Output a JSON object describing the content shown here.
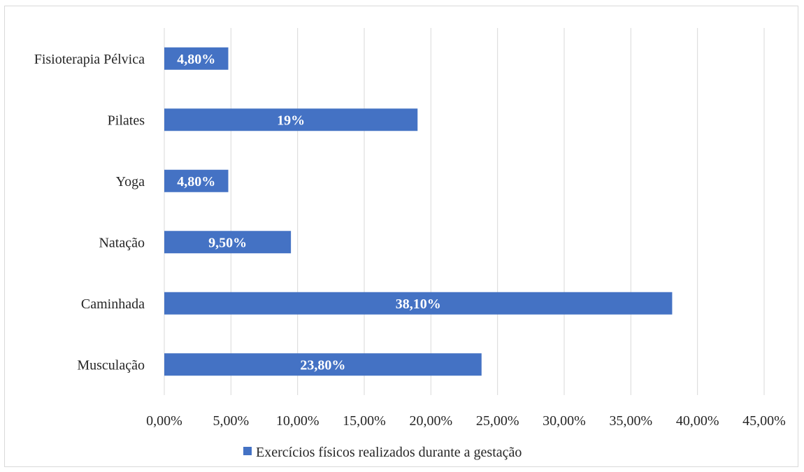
{
  "chart_data": {
    "type": "bar",
    "orientation": "horizontal",
    "categories": [
      "Fisioterapia Pélvica",
      "Pilates",
      "Yoga",
      "Natação",
      "Caminhada",
      "Musculação"
    ],
    "series": [
      {
        "name": "Exercícios físicos realizados durante a gestação",
        "values": [
          4.8,
          19.0,
          4.8,
          9.5,
          38.1,
          23.8
        ],
        "data_labels": [
          "4,80%",
          "19%",
          "4,80%",
          "9,50%",
          "38,10%",
          "23,80%"
        ],
        "color": "#4472c4"
      }
    ],
    "xlim": [
      0,
      45
    ],
    "x_ticks": [
      0,
      5,
      10,
      15,
      20,
      25,
      30,
      35,
      40,
      45
    ],
    "x_tick_labels": [
      "0,00%",
      "5,00%",
      "10,00%",
      "15,00%",
      "20,00%",
      "25,00%",
      "30,00%",
      "35,00%",
      "40,00%",
      "45,00%"
    ],
    "grid": "vertical",
    "legend_position": "bottom",
    "title": "",
    "xlabel": "",
    "ylabel": ""
  }
}
